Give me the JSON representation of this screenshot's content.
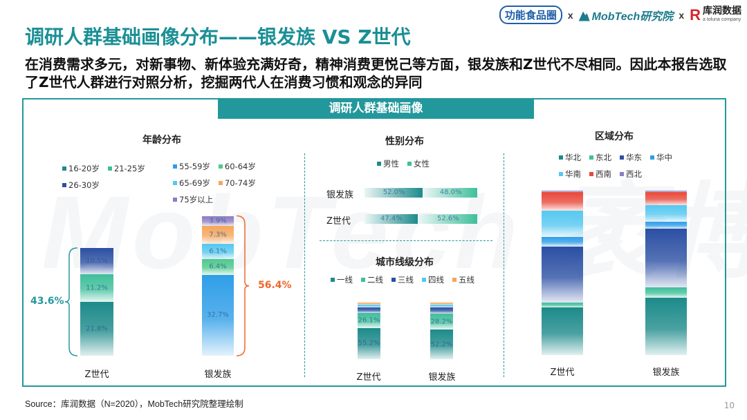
{
  "logos": {
    "logo_a": "功能食品圈",
    "sep1": "x",
    "logo_b": "MobTech研究院",
    "sep2": "x",
    "logo_c": "库润数据",
    "logo_c_sub": "a toluna company"
  },
  "title": "调研人群基础画像分布——银发族 VS Z世代",
  "subtitle": "在消费需求多元，对新事物、新体验充满好奇，精神消费更悦己等方面，银发族和Z世代不尽相同。因此本报告选取了Z世代人群进行对照分析，挖掘两代人在消费习惯和观念的异同",
  "panel_title": "调研人群基础画像",
  "watermark": "MobTech 袤博",
  "source": "Source：库润数据（N=2020），MobTech研究院整理绘制",
  "page_number": "10",
  "colors": {
    "teal": "#23989c",
    "orange": "#f0662a"
  },
  "chart_data": [
    {
      "type": "bar",
      "stacked": true,
      "title": "年龄分布",
      "categories": [
        "Z世代",
        "银发族"
      ],
      "legend": [
        "16-20岁",
        "21-25岁",
        "26-30岁",
        "55-59岁",
        "60-64岁",
        "65-69岁",
        "70-74岁",
        "75岁以上"
      ],
      "series": [
        {
          "name": "16-20岁",
          "values": [
            21.8,
            null
          ],
          "color": "#1d8a8a"
        },
        {
          "name": "21-25岁",
          "values": [
            11.2,
            null
          ],
          "color": "#3fbf9a"
        },
        {
          "name": "26-30岁",
          "values": [
            10.5,
            null
          ],
          "color": "#2b4fa3"
        },
        {
          "name": "55-59岁",
          "values": [
            null,
            32.7
          ],
          "color": "#2f9ee8"
        },
        {
          "name": "60-64岁",
          "values": [
            null,
            6.4
          ],
          "color": "#4fc98c"
        },
        {
          "name": "65-69岁",
          "values": [
            null,
            6.1
          ],
          "color": "#55c8f0"
        },
        {
          "name": "70-74岁",
          "values": [
            null,
            7.3
          ],
          "color": "#f5a65b"
        },
        {
          "name": "75岁以上",
          "values": [
            null,
            3.9
          ],
          "color": "#8e7cc3"
        }
      ],
      "group_totals": {
        "Z世代": "43.6%",
        "银发族": "56.4%"
      }
    },
    {
      "type": "bar",
      "stacked": true,
      "orientation": "horizontal",
      "title": "性别分布",
      "categories": [
        "银发族",
        "Z世代"
      ],
      "legend": [
        "男性",
        "女性"
      ],
      "series": [
        {
          "name": "男性",
          "values": [
            52.0,
            47.4
          ],
          "color": "#1d8a8a"
        },
        {
          "name": "女性",
          "values": [
            48.0,
            52.6
          ],
          "color": "#3fbf9a"
        }
      ],
      "value_labels": [
        [
          "52.0%",
          "48.0%"
        ],
        [
          "47.4%",
          "52.6%"
        ]
      ]
    },
    {
      "type": "bar",
      "stacked": true,
      "title": "城市线级分布",
      "categories": [
        "Z世代",
        "银发族"
      ],
      "legend": [
        "一线",
        "二线",
        "三线",
        "四线",
        "五线"
      ],
      "series": [
        {
          "name": "一线",
          "values": [
            55.2,
            52.2
          ],
          "color": "#1d8a8a"
        },
        {
          "name": "二线",
          "values": [
            26.1,
            28.2
          ],
          "color": "#3fbf9a"
        },
        {
          "name": "三线",
          "values": [
            10.0,
            10.5
          ],
          "color": "#2b4fa3"
        },
        {
          "name": "四线",
          "values": [
            5.5,
            6.0
          ],
          "color": "#55c8f0"
        },
        {
          "name": "五线",
          "values": [
            3.2,
            3.1
          ],
          "color": "#f5a65b"
        }
      ],
      "value_labels": [
        [
          "55.2%",
          "26.1%"
        ],
        [
          "52.2%",
          "28.2%"
        ]
      ]
    },
    {
      "type": "bar",
      "stacked": true,
      "title": "区域分布",
      "categories": [
        "Z世代",
        "银发族"
      ],
      "legend": [
        "华北",
        "东北",
        "华东",
        "华中",
        "华南",
        "西南",
        "西北"
      ],
      "series": [
        {
          "name": "华北",
          "values": [
            29.0,
            35.0
          ],
          "color": "#1d8a8a"
        },
        {
          "name": "东北",
          "values": [
            3.0,
            6.0
          ],
          "color": "#3fbf9a"
        },
        {
          "name": "华东",
          "values": [
            34.0,
            36.0
          ],
          "color": "#2b4fa3"
        },
        {
          "name": "华中",
          "values": [
            6.0,
            4.0
          ],
          "color": "#2f9ee8"
        },
        {
          "name": "华南",
          "values": [
            16.0,
            10.0
          ],
          "color": "#55c8f0"
        },
        {
          "name": "西南",
          "values": [
            11.0,
            8.0
          ],
          "color": "#e8483a"
        },
        {
          "name": "西北",
          "values": [
            1.0,
            1.0
          ],
          "color": "#8e7cc3"
        }
      ]
    }
  ]
}
